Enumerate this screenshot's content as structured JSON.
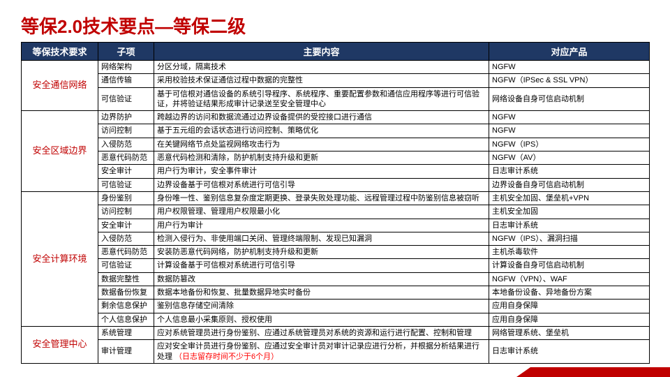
{
  "title": "等保2.0技术要点—等保二级",
  "columns": {
    "c1": "等保技术要求",
    "c2": "子项",
    "c3": "主要内容",
    "c4": "对应产品"
  },
  "widths": {
    "c1": 110,
    "c2": 80,
    "c3": 480,
    "c4": 230
  },
  "colors": {
    "header_bg": "#1f3864",
    "header_fg": "#ffffff",
    "cat_fg": "#c00000",
    "title_fg": "#c00000",
    "border": "#000000",
    "highlight": "#ff0000",
    "bg": "#ffffff"
  },
  "rows": [
    {
      "cat": "安全通信网络",
      "catRowspan": 3,
      "sub": "网络架构",
      "cnt": "分区分域，隔离技术",
      "prd": "NGFW"
    },
    {
      "sub": "通信传输",
      "cnt": "采用校验技术保证通信过程中数据的完整性",
      "prd": "NGFW（IPSec & SSL VPN）"
    },
    {
      "sub": "可信验证",
      "cnt": "基于可信根对通信设备的系统引导程序、系统程序、重要配置参数和通信应用程序等进行可信验证，并将验证结果形成审计记录送至安全管理中心",
      "prd": "网络设备自身可信启动机制"
    },
    {
      "cat": "安全区域边界",
      "catRowspan": 6,
      "sub": "边界防护",
      "cnt": "跨越边界的访问和数据流通过边界设备提供的受控接口进行通信",
      "prd": "NGFW"
    },
    {
      "sub": "访问控制",
      "cnt": "基于五元组的会话状态进行访问控制、策略优化",
      "prd": "NGFW"
    },
    {
      "sub": "入侵防范",
      "cnt": "在关键网络节点处监视网络攻击行为",
      "prd": "NGFW（IPS）"
    },
    {
      "sub": "恶意代码防范",
      "cnt": "恶意代码检测和清除，防护机制支持升级和更新",
      "prd": "NGFW（AV）"
    },
    {
      "sub": "安全审计",
      "cnt": "用户行为审计，安全事件审计",
      "prd": "日志审计系统"
    },
    {
      "sub": "可信验证",
      "cnt": "边界设备基于可信根对系统进行可信引导",
      "prd": "边界设备自身可信启动机制"
    },
    {
      "cat": "安全计算环境",
      "catRowspan": 9,
      "sub": "身份鉴别",
      "cnt": "身份唯一性、鉴别信息复杂度定期更换、登录失败处理功能、远程管理过程中防鉴别信息被窃听",
      "prd": "主机安全加固、堡垒机+VPN"
    },
    {
      "sub": "访问控制",
      "cnt": "用户权限管理、管理用户权限最小化",
      "prd": "主机安全加固"
    },
    {
      "sub": "安全审计",
      "cnt": "用户行为审计",
      "prd": "日志审计系统"
    },
    {
      "sub": "入侵防范",
      "cnt": "检测入侵行为、非使用端口关闭、管理终端限制、发现已知漏洞",
      "prd": "NGFW（IPS）、漏洞扫描"
    },
    {
      "sub": "恶意代码防范",
      "cnt": "安装防恶意代码网络，防护机制支持升级和更新",
      "prd": "主机杀毒软件"
    },
    {
      "sub": "可信验证",
      "cnt": "计算设备基于可信根对系统进行可信引导",
      "prd": "计算设备自身可信启动机制"
    },
    {
      "sub": "数据完整性",
      "cnt": "数据防篡改",
      "prd": "NGFW（VPN）、WAF"
    },
    {
      "sub": "数据备份恢复",
      "cnt": "数据本地备份和恢复、批量数据异地实时备份",
      "prd": "本地备份设备、异地备份方案"
    },
    {
      "sub": "剩余信息保护",
      "cnt": "鉴别信息存储空间清除",
      "prd": "应用自身保障"
    },
    {
      "sub": "个人信息保护",
      "cnt": "个人信息最小采集原则、授权使用",
      "prd": "应用自身保障",
      "extraForCat": true
    },
    {
      "cat": "安全管理中心",
      "catRowspan": 2,
      "sub": "系统管理",
      "cnt": "应对系统管理员进行身份鉴别、应通过系统管理员对系统的资源和运行进行配置、控制和管理",
      "prd": "网络管理系统、堡垒机"
    },
    {
      "sub": "审计管理",
      "cnt": "应对安全审计员进行身份鉴别、应通过安全审计员对审计记录应进行分析，并根据分析结果进行处理",
      "cnt_suffix_red": "（日志留存时间不少于6个月）",
      "prd": "日志审计系统"
    }
  ]
}
